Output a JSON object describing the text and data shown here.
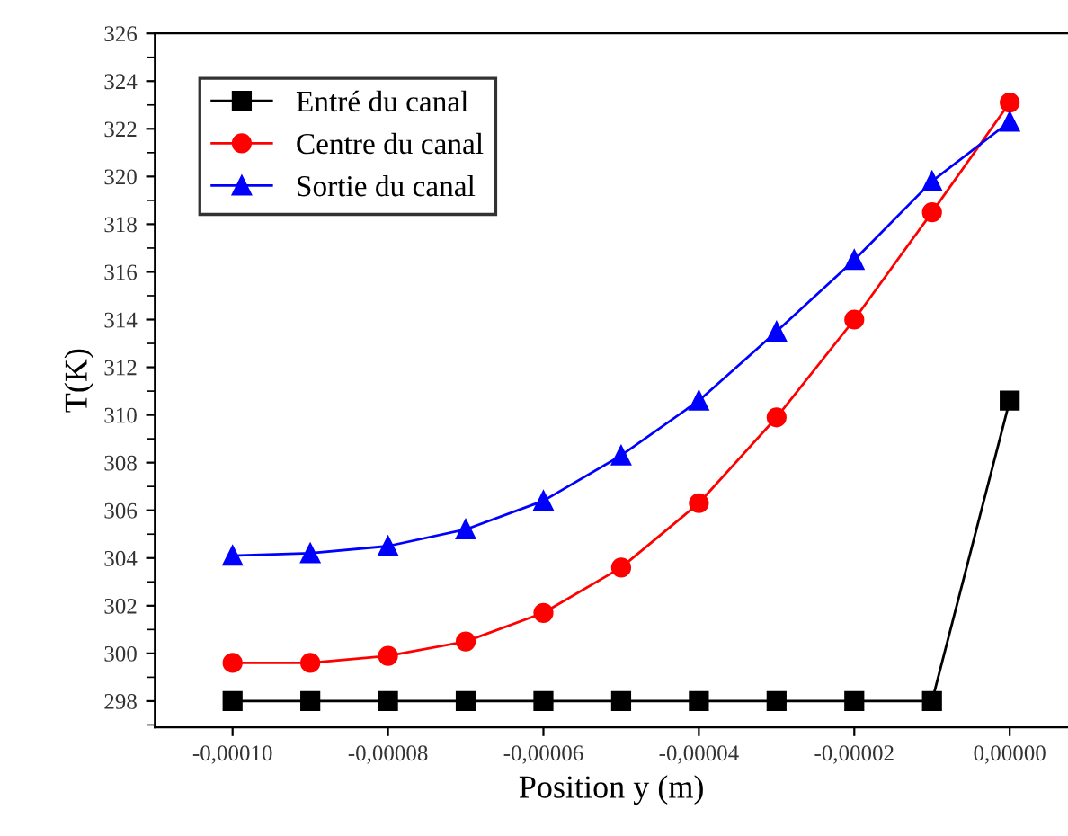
{
  "chart_data": {
    "type": "line",
    "xlabel": "Position y (m)",
    "ylabel": "T(K)",
    "x": [
      -0.0001,
      -9e-05,
      -8e-05,
      -7e-05,
      -6e-05,
      -5e-05,
      -4e-05,
      -3e-05,
      -2e-05,
      -1e-05,
      0
    ],
    "series": [
      {
        "name": "Entré du canal",
        "color": "#000000",
        "marker": "square",
        "values": [
          298,
          298,
          298,
          298,
          298,
          298,
          298,
          298,
          298,
          298,
          310.6
        ]
      },
      {
        "name": "Centre du canal",
        "color": "#ff0000",
        "marker": "circle",
        "values": [
          299.6,
          299.6,
          299.9,
          300.5,
          301.7,
          303.6,
          306.3,
          309.9,
          314.0,
          318.5,
          323.1
        ]
      },
      {
        "name": "Sortie du canal",
        "color": "#0000ff",
        "marker": "triangle",
        "values": [
          304.1,
          304.2,
          304.5,
          305.2,
          306.4,
          308.3,
          310.6,
          313.5,
          316.5,
          319.8,
          322.3
        ]
      }
    ],
    "xlim": [
      -0.00011,
      7.5e-06
    ],
    "xticks": [
      {
        "value": -0.0001,
        "label": "-0,00010"
      },
      {
        "value": -8e-05,
        "label": "-0,00008"
      },
      {
        "value": -6e-05,
        "label": "-0,00006"
      },
      {
        "value": -4e-05,
        "label": "-0,00004"
      },
      {
        "value": -2e-05,
        "label": "-0,00002"
      },
      {
        "value": 0,
        "label": "0,00000"
      }
    ],
    "ylim": [
      296.9,
      326
    ],
    "yticks": [
      298,
      300,
      302,
      304,
      306,
      308,
      310,
      312,
      314,
      316,
      318,
      320,
      322,
      324,
      326
    ],
    "grid": false,
    "legend": "top left",
    "line_style": "solid"
  }
}
